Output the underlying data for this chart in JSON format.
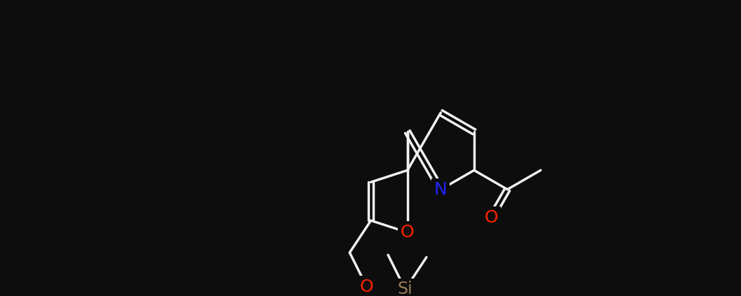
{
  "background_color": "#0d0d0d",
  "bond_color": "#f0f0f0",
  "O_color": "#ff2200",
  "N_color": "#2222ff",
  "Si_color": "#9a7c5a",
  "bond_width": 2.5,
  "font_size": 18
}
